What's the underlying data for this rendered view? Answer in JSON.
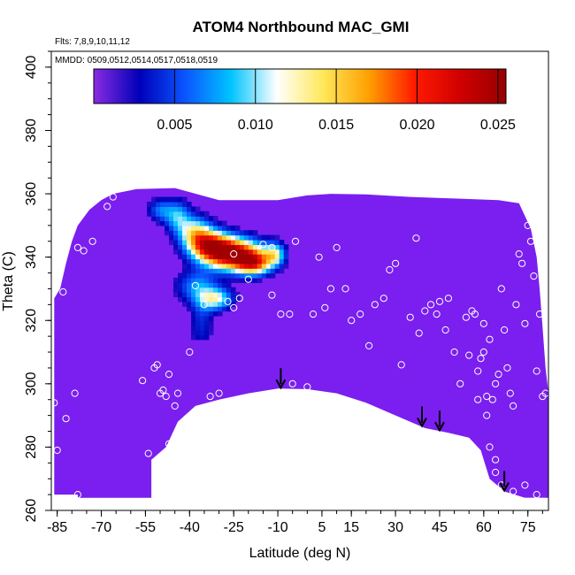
{
  "chart_data": {
    "type": "heatmap",
    "title": "ATOM4 Northbound MAC_GMI",
    "subtitle_lines": [
      "Flts: 7,8,9,10,11,12",
      "MMDD: 0509,0512,0514,0517,0518,0519"
    ],
    "xlabel": "Latitude (deg N)",
    "ylabel": "Theta (C)",
    "xlim": [
      -87,
      82
    ],
    "ylim": [
      260,
      405
    ],
    "x_ticks": [
      -85,
      -70,
      -55,
      -40,
      -25,
      -10,
      5,
      15,
      30,
      45,
      60,
      75
    ],
    "y_ticks": [
      260,
      280,
      300,
      320,
      340,
      360,
      380,
      400
    ],
    "colorbar": {
      "range": [
        0,
        0.0255
      ],
      "ticks": [
        0.005,
        0.01,
        0.015,
        0.02,
        0.025
      ],
      "tick_labels": [
        "0.005",
        "0.010",
        "0.015",
        "0.020",
        "0.025"
      ],
      "colors": [
        "#8a2be2",
        "#0000b8",
        "#0b55ff",
        "#00c4ff",
        "#ffffff",
        "#ffe85a",
        "#ffa000",
        "#ff1a00",
        "#d00000",
        "#960000"
      ]
    },
    "background_value_color": "#7a1fef",
    "plume": {
      "max_value": 0.024,
      "max_location": [
        -25,
        341
      ],
      "description_points": [
        {
          "lat": -25,
          "theta": 341,
          "value": 0.024
        },
        {
          "lat": -30,
          "theta": 343,
          "value": 0.021
        },
        {
          "lat": -20,
          "theta": 340,
          "value": 0.019
        },
        {
          "lat": -35,
          "theta": 345,
          "value": 0.015
        },
        {
          "lat": -40,
          "theta": 348,
          "value": 0.011
        },
        {
          "lat": -45,
          "theta": 352,
          "value": 0.008
        },
        {
          "lat": -30,
          "theta": 327,
          "value": 0.01
        },
        {
          "lat": -10,
          "theta": 340,
          "value": 0.009
        }
      ]
    },
    "lower_boundary": [
      {
        "lat": -53,
        "theta": 265
      },
      {
        "lat": -53,
        "theta": 276
      },
      {
        "lat": -48,
        "theta": 280
      },
      {
        "lat": -44,
        "theta": 288
      },
      {
        "lat": -38,
        "theta": 293
      },
      {
        "lat": -30,
        "theta": 295
      },
      {
        "lat": -20,
        "theta": 297
      },
      {
        "lat": -10,
        "theta": 298.5
      },
      {
        "lat": 0,
        "theta": 298.3
      },
      {
        "lat": 10,
        "theta": 297
      },
      {
        "lat": 20,
        "theta": 294
      },
      {
        "lat": 30,
        "theta": 290
      },
      {
        "lat": 40,
        "theta": 286
      },
      {
        "lat": 48,
        "theta": 284.5
      },
      {
        "lat": 55,
        "theta": 283
      },
      {
        "lat": 59,
        "theta": 279
      },
      {
        "lat": 62,
        "theta": 270
      },
      {
        "lat": 67,
        "theta": 266
      },
      {
        "lat": 74,
        "theta": 264
      },
      {
        "lat": 81,
        "theta": 264
      }
    ],
    "arrows_lat": [
      -9,
      39,
      45,
      67
    ],
    "points": [
      [
        -86,
        294
      ],
      [
        -85,
        279
      ],
      [
        -82,
        289
      ],
      [
        -79,
        297
      ],
      [
        -78,
        265
      ],
      [
        -83,
        329
      ],
      [
        -78,
        343
      ],
      [
        -76,
        342
      ],
      [
        -73,
        345
      ],
      [
        -68,
        356
      ],
      [
        -66,
        359
      ],
      [
        -56,
        301
      ],
      [
        -54,
        278
      ],
      [
        -52,
        305
      ],
      [
        -51,
        306
      ],
      [
        -50,
        297
      ],
      [
        -49,
        298
      ],
      [
        -48,
        296
      ],
      [
        -47,
        281
      ],
      [
        -47,
        303
      ],
      [
        -45,
        293
      ],
      [
        -44,
        297
      ],
      [
        -41,
        289
      ],
      [
        -40,
        310
      ],
      [
        -38,
        331
      ],
      [
        -37,
        292
      ],
      [
        -35,
        325
      ],
      [
        -33,
        296
      ],
      [
        -30,
        297
      ],
      [
        -27,
        326
      ],
      [
        -25,
        341
      ],
      [
        -25,
        324
      ],
      [
        -23,
        327
      ],
      [
        -20,
        333
      ],
      [
        -15,
        344
      ],
      [
        -12,
        343
      ],
      [
        -12,
        328
      ],
      [
        -9,
        322
      ],
      [
        -6,
        322
      ],
      [
        -4,
        345
      ],
      [
        -5,
        300
      ],
      [
        0,
        299
      ],
      [
        2,
        322
      ],
      [
        4,
        340
      ],
      [
        6,
        324
      ],
      [
        8,
        330
      ],
      [
        10,
        343
      ],
      [
        13,
        330
      ],
      [
        15,
        320
      ],
      [
        18,
        322
      ],
      [
        21,
        312
      ],
      [
        23,
        325
      ],
      [
        26,
        327
      ],
      [
        28,
        336
      ],
      [
        30,
        338
      ],
      [
        32,
        306
      ],
      [
        35,
        321
      ],
      [
        37,
        346
      ],
      [
        38,
        316
      ],
      [
        40,
        323
      ],
      [
        42,
        325
      ],
      [
        44,
        322
      ],
      [
        45,
        326
      ],
      [
        47,
        317
      ],
      [
        48,
        327
      ],
      [
        50,
        310
      ],
      [
        52,
        300
      ],
      [
        54,
        321
      ],
      [
        55,
        309
      ],
      [
        56,
        323
      ],
      [
        57,
        322
      ],
      [
        58,
        304
      ],
      [
        59,
        308
      ],
      [
        60,
        319
      ],
      [
        61,
        296
      ],
      [
        62,
        314
      ],
      [
        63,
        295
      ],
      [
        64,
        300
      ],
      [
        65,
        303
      ],
      [
        66,
        330
      ],
      [
        67,
        317
      ],
      [
        68,
        305
      ],
      [
        69,
        297
      ],
      [
        70,
        293
      ],
      [
        71,
        325
      ],
      [
        72,
        341
      ],
      [
        73,
        338
      ],
      [
        74,
        319
      ],
      [
        75,
        350
      ],
      [
        76,
        345
      ],
      [
        77,
        334
      ],
      [
        78,
        304
      ],
      [
        79,
        322
      ],
      [
        80,
        296
      ],
      [
        81,
        297
      ],
      [
        60,
        310
      ],
      [
        62,
        280
      ],
      [
        64,
        272
      ],
      [
        66,
        268
      ],
      [
        70,
        266
      ],
      [
        74,
        268
      ],
      [
        78,
        265
      ],
      [
        64,
        276
      ],
      [
        61,
        290
      ],
      [
        58,
        295
      ]
    ]
  }
}
